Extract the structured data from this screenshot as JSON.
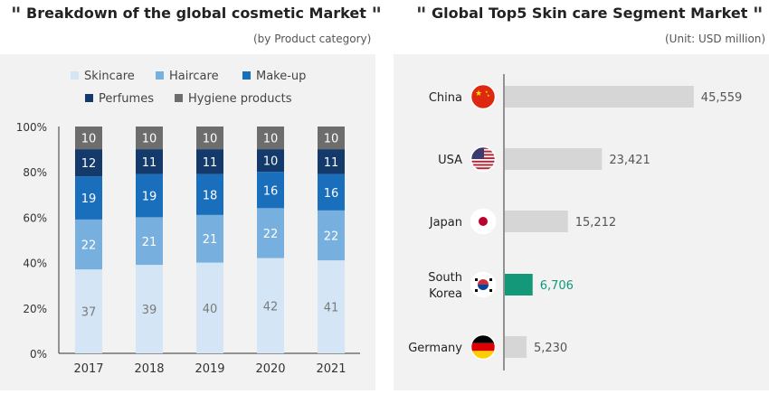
{
  "left": {
    "title": "Breakdown of the global cosmetic Market",
    "subtitle": "(by Product category)",
    "chart_data": {
      "type": "bar",
      "stacked": true,
      "categories": [
        "2017",
        "2018",
        "2019",
        "2020",
        "2021"
      ],
      "series": [
        {
          "name": "Skincare",
          "color": "#d4e6f5",
          "values": [
            37,
            39,
            40,
            42,
            41
          ]
        },
        {
          "name": "Haircare",
          "color": "#77b0de",
          "values": [
            22,
            21,
            21,
            22,
            22
          ]
        },
        {
          "name": "Make-up",
          "color": "#1a6fbd",
          "values": [
            19,
            19,
            18,
            16,
            16
          ]
        },
        {
          "name": "Perfumes",
          "color": "#133a6b",
          "values": [
            12,
            11,
            11,
            10,
            11
          ]
        },
        {
          "name": "Hygiene products",
          "color": "#6d6d6d",
          "values": [
            10,
            10,
            10,
            10,
            10
          ]
        }
      ],
      "yticks": [
        "0%",
        "20%",
        "40%",
        "60%",
        "80%",
        "100%"
      ],
      "ylim": [
        0,
        100
      ],
      "legend": "top"
    }
  },
  "right": {
    "title": "Global Top5 Skin care Segment Market",
    "subtitle": "(Unit: USD million)",
    "chart_data": {
      "type": "bar",
      "orientation": "horizontal",
      "categories": [
        {
          "label": "China",
          "flag": "china-flag-icon"
        },
        {
          "label": "USA",
          "flag": "usa-flag-icon"
        },
        {
          "label": "Japan",
          "flag": "japan-flag-icon"
        },
        {
          "label": "South Korea",
          "flag": "south-korea-flag-icon",
          "highlight": true
        },
        {
          "label": "Germany",
          "flag": "germany-flag-icon"
        }
      ],
      "values": [
        45559,
        23421,
        15212,
        6706,
        5230
      ],
      "value_labels": [
        "45,559",
        "23,421",
        "15,212",
        "6,706",
        "5,230"
      ],
      "bar_color": "#d6d6d6",
      "highlight_color": "#13987a",
      "xlim": [
        0,
        48000
      ]
    }
  }
}
